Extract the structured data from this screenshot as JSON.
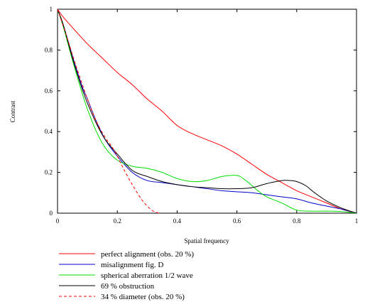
{
  "chart_data": {
    "type": "line",
    "title": "",
    "xlabel": "Spatial frequency",
    "ylabel": "Contrast",
    "xlim": [
      0,
      1
    ],
    "ylim": [
      0,
      1
    ],
    "xticks": [
      0,
      0.2,
      0.4,
      0.6,
      0.8,
      1
    ],
    "yticks": [
      0,
      0.2,
      0.4,
      0.6,
      0.8,
      1
    ],
    "xtick_labels": [
      "0",
      "0.2",
      "0.4",
      "0.6",
      "0.8",
      "1"
    ],
    "ytick_labels": [
      "0",
      "0.2",
      "0.4",
      "0.6",
      "0.8",
      "1"
    ],
    "grid": false,
    "legend_position": "bottom-left",
    "series": [
      {
        "name": "perfect alignment (obs. 20 %)",
        "color": "#ff0000",
        "dash": "solid",
        "x": [
          0,
          0.02,
          0.05,
          0.1,
          0.15,
          0.2,
          0.25,
          0.3,
          0.35,
          0.4,
          0.45,
          0.5,
          0.55,
          0.6,
          0.65,
          0.7,
          0.75,
          0.8,
          0.85,
          0.9,
          0.95,
          1.0
        ],
        "y": [
          1.0,
          0.96,
          0.91,
          0.83,
          0.76,
          0.69,
          0.63,
          0.56,
          0.5,
          0.43,
          0.39,
          0.36,
          0.33,
          0.29,
          0.24,
          0.19,
          0.15,
          0.11,
          0.08,
          0.05,
          0.02,
          0.0
        ]
      },
      {
        "name": "misalignment fig. D",
        "color": "#0000cc",
        "dash": "solid",
        "x": [
          0,
          0.02,
          0.05,
          0.08,
          0.1,
          0.13,
          0.16,
          0.2,
          0.25,
          0.3,
          0.35,
          0.4,
          0.45,
          0.5,
          0.55,
          0.6,
          0.65,
          0.7,
          0.75,
          0.8,
          0.85,
          0.9,
          0.95,
          1.0
        ],
        "y": [
          1.0,
          0.92,
          0.77,
          0.63,
          0.56,
          0.45,
          0.36,
          0.28,
          0.2,
          0.16,
          0.15,
          0.14,
          0.13,
          0.12,
          0.11,
          0.105,
          0.1,
          0.09,
          0.08,
          0.07,
          0.05,
          0.035,
          0.02,
          0.0
        ]
      },
      {
        "name": "spherical aberration 1/2 wave",
        "color": "#00dd00",
        "dash": "solid",
        "x": [
          0,
          0.02,
          0.05,
          0.08,
          0.1,
          0.13,
          0.16,
          0.2,
          0.25,
          0.3,
          0.35,
          0.4,
          0.45,
          0.5,
          0.55,
          0.6,
          0.63,
          0.67,
          0.7,
          0.75,
          0.8,
          0.85,
          0.9,
          0.95,
          1.0
        ],
        "y": [
          1.0,
          0.91,
          0.75,
          0.6,
          0.51,
          0.4,
          0.32,
          0.26,
          0.23,
          0.22,
          0.2,
          0.17,
          0.155,
          0.16,
          0.18,
          0.185,
          0.16,
          0.11,
          0.08,
          0.05,
          0.015,
          0.01,
          0.01,
          0.008,
          0.0
        ]
      },
      {
        "name": "69 % obstruction",
        "color": "#000000",
        "dash": "solid",
        "x": [
          0,
          0.02,
          0.05,
          0.08,
          0.1,
          0.13,
          0.16,
          0.2,
          0.25,
          0.3,
          0.35,
          0.4,
          0.45,
          0.5,
          0.55,
          0.6,
          0.65,
          0.7,
          0.75,
          0.78,
          0.8,
          0.83,
          0.86,
          0.9,
          0.95,
          1.0
        ],
        "y": [
          1.0,
          0.92,
          0.76,
          0.62,
          0.54,
          0.44,
          0.36,
          0.29,
          0.21,
          0.18,
          0.155,
          0.14,
          0.13,
          0.125,
          0.12,
          0.12,
          0.125,
          0.145,
          0.16,
          0.16,
          0.155,
          0.135,
          0.1,
          0.06,
          0.025,
          0.0
        ]
      },
      {
        "name": "34 % diameter (obs. 20 %)",
        "color": "#ff0000",
        "dash": "dashed",
        "x": [
          0,
          0.03,
          0.06,
          0.1,
          0.13,
          0.16,
          0.18,
          0.2,
          0.22,
          0.25,
          0.28,
          0.3,
          0.32,
          0.34
        ],
        "y": [
          1.0,
          0.87,
          0.73,
          0.56,
          0.45,
          0.37,
          0.33,
          0.28,
          0.22,
          0.14,
          0.07,
          0.035,
          0.01,
          0.0
        ]
      }
    ]
  }
}
